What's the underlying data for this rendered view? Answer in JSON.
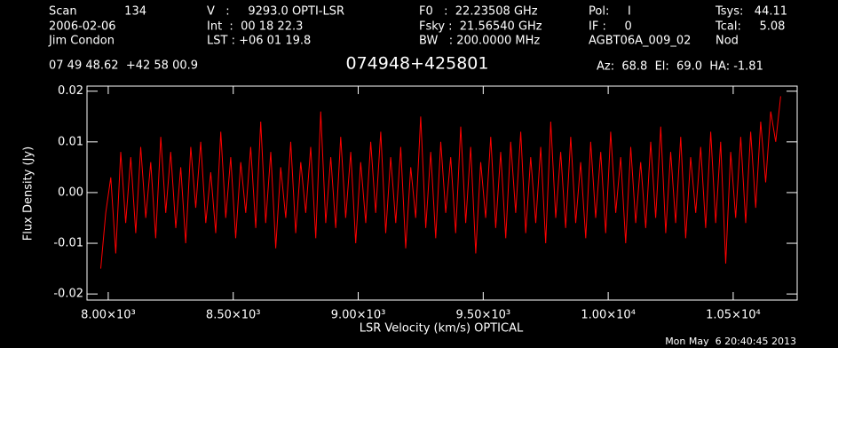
{
  "chart_data": {
    "type": "line",
    "title": "074948+425801",
    "header": [
      [
        "Scan",
        "134",
        "V   :     9293.0 OPTI-LSR",
        "F0   :  22.23508 GHz",
        "Pol:     I",
        "Tsys:   44.11"
      ],
      [
        "2006-02-06",
        "Int  :  00 18 22.3",
        "Fsky :  21.56540 GHz",
        "IF :     0",
        "Tcal:     5.08"
      ],
      [
        "Jim Condon",
        "LST : +06 01 19.8",
        "BW   : 200.0000 MHz",
        "AGBT06A_009_02",
        "Nod"
      ],
      [
        "07 49 48.62  +42 58 00.9",
        "Az:  68.8  El:  69.0  HA: -1.81"
      ]
    ],
    "timestamp": "Mon May  6 20:40:45 2013",
    "x_label": "LSR Velocity (km/s) OPTICAL",
    "y_label": "Flux Density (Jy)",
    "xlim": [
      7915,
      10756
    ],
    "ylim": [
      -0.0212,
      0.021
    ],
    "xticks": [
      {
        "value": 8000,
        "label": "8.00×10³"
      },
      {
        "value": 8500,
        "label": "8.50×10³"
      },
      {
        "value": 9000,
        "label": "9.00×10³"
      },
      {
        "value": 9500,
        "label": "9.50×10³"
      },
      {
        "value": 10000,
        "label": "1.00×10⁴"
      },
      {
        "value": 10500,
        "label": "1.05×10⁴"
      }
    ],
    "yticks": [
      -0.02,
      -0.01,
      {
        "value": 0,
        "label": "0.00"
      },
      0.01,
      0.02
    ],
    "x": [
      7970,
      7990,
      8010,
      8030,
      8050,
      8070,
      8090,
      8110,
      8130,
      8150,
      8170,
      8190,
      8210,
      8230,
      8250,
      8270,
      8290,
      8310,
      8330,
      8350,
      8370,
      8390,
      8410,
      8430,
      8450,
      8470,
      8490,
      8510,
      8530,
      8550,
      8570,
      8590,
      8610,
      8630,
      8650,
      8670,
      8690,
      8710,
      8730,
      8750,
      8770,
      8790,
      8810,
      8830,
      8850,
      8870,
      8890,
      8910,
      8930,
      8950,
      8970,
      8990,
      9010,
      9030,
      9050,
      9070,
      9090,
      9110,
      9130,
      9150,
      9170,
      9190,
      9210,
      9230,
      9250,
      9270,
      9290,
      9310,
      9330,
      9350,
      9370,
      9390,
      9410,
      9430,
      9450,
      9470,
      9490,
      9510,
      9530,
      9550,
      9570,
      9590,
      9610,
      9630,
      9650,
      9670,
      9690,
      9710,
      9730,
      9750,
      9770,
      9790,
      9810,
      9830,
      9850,
      9870,
      9890,
      9910,
      9930,
      9950,
      9970,
      9990,
      10010,
      10030,
      10050,
      10070,
      10090,
      10110,
      10130,
      10150,
      10170,
      10190,
      10210,
      10230,
      10250,
      10270,
      10290,
      10310,
      10330,
      10350,
      10370,
      10390,
      10410,
      10430,
      10450,
      10470,
      10490,
      10510,
      10530,
      10550,
      10570,
      10590,
      10610,
      10630,
      10650,
      10670,
      10690
    ],
    "series": [
      {
        "color": "#ff0000",
        "values": [
          -0.015,
          -0.004,
          0.003,
          -0.012,
          0.008,
          -0.006,
          0.007,
          -0.008,
          0.009,
          -0.005,
          0.006,
          -0.009,
          0.011,
          -0.004,
          0.008,
          -0.007,
          0.005,
          -0.01,
          0.009,
          -0.003,
          0.01,
          -0.006,
          0.004,
          -0.008,
          0.012,
          -0.005,
          0.007,
          -0.009,
          0.006,
          -0.004,
          0.009,
          -0.007,
          0.014,
          -0.006,
          0.008,
          -0.011,
          0.005,
          -0.005,
          0.01,
          -0.008,
          0.006,
          -0.004,
          0.009,
          -0.009,
          0.016,
          -0.006,
          0.007,
          -0.007,
          0.011,
          -0.005,
          0.008,
          -0.01,
          0.006,
          -0.006,
          0.01,
          -0.004,
          0.012,
          -0.008,
          0.007,
          -0.006,
          0.009,
          -0.011,
          0.005,
          -0.005,
          0.015,
          -0.007,
          0.008,
          -0.009,
          0.01,
          -0.004,
          0.007,
          -0.008,
          0.013,
          -0.006,
          0.009,
          -0.012,
          0.006,
          -0.005,
          0.011,
          -0.007,
          0.008,
          -0.009,
          0.01,
          -0.004,
          0.012,
          -0.008,
          0.007,
          -0.006,
          0.009,
          -0.01,
          0.014,
          -0.005,
          0.008,
          -0.007,
          0.011,
          -0.006,
          0.006,
          -0.009,
          0.01,
          -0.005,
          0.008,
          -0.008,
          0.012,
          -0.004,
          0.007,
          -0.01,
          0.009,
          -0.006,
          0.006,
          -0.007,
          0.01,
          -0.005,
          0.013,
          -0.008,
          0.008,
          -0.006,
          0.011,
          -0.009,
          0.007,
          -0.004,
          0.009,
          -0.007,
          0.012,
          -0.006,
          0.01,
          -0.014,
          0.008,
          -0.005,
          0.011,
          -0.006,
          0.012,
          -0.003,
          0.014,
          0.002,
          0.016,
          0.01,
          0.019
        ]
      }
    ]
  }
}
